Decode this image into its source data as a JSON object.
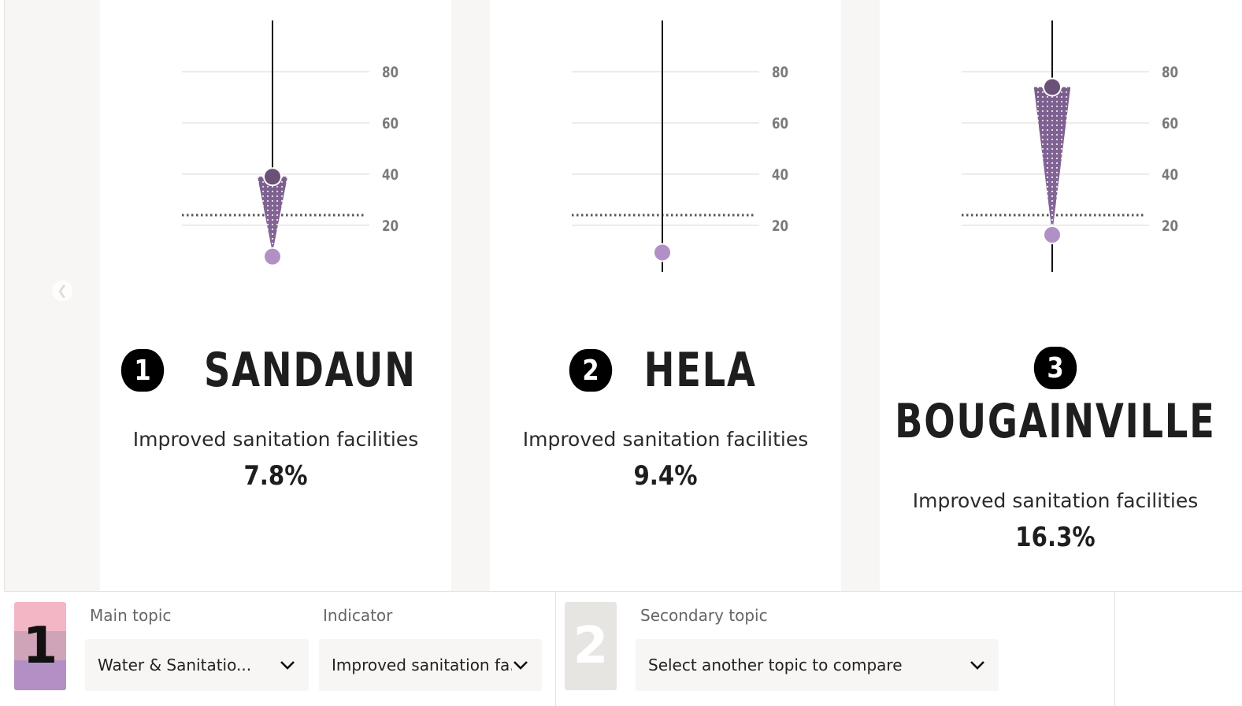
{
  "colors": {
    "accent_dark": "#6b5078",
    "accent_light": "#b190c6",
    "background": "#f8f6f4"
  },
  "chart_data": [
    {
      "type": "dot-range",
      "region": "SANDAUN",
      "rank": "1",
      "yticks": [
        "20",
        "40",
        "60",
        "80"
      ],
      "ylim": [
        0,
        100
      ],
      "low_value": 7.8,
      "high_value": 39,
      "reference_line": 24,
      "stem_top": 100,
      "stem_bottom": 39
    },
    {
      "type": "dot-range",
      "region": "HELA",
      "rank": "2",
      "yticks": [
        "20",
        "40",
        "60",
        "80"
      ],
      "ylim": [
        0,
        100
      ],
      "low_value": 9.4,
      "high_value": 9.4,
      "reference_line": 24,
      "stem_top": 100,
      "stem_bottom": 0
    },
    {
      "type": "dot-range",
      "region": "BOUGAINVILLE",
      "rank": "3",
      "yticks": [
        "20",
        "40",
        "60",
        "80"
      ],
      "ylim": [
        0,
        100
      ],
      "low_value": 16.3,
      "high_value": 74,
      "reference_line": 24,
      "stem_top": 100,
      "stem_bottom": 0
    }
  ],
  "panels": [
    {
      "rank": "1",
      "name": "SANDAUN",
      "indicator": "Improved sanitation facilities",
      "value": "7.8%"
    },
    {
      "rank": "2",
      "name": "HELA",
      "indicator": "Improved sanitation facilities",
      "value": "9.4%"
    },
    {
      "rank": "3",
      "name": "BOUGAINVILLE",
      "indicator": "Improved sanitation facilities",
      "value": "16.3%"
    }
  ],
  "controls": {
    "primary": {
      "number": "1",
      "main_topic_label": "Main topic",
      "main_topic_value": "Water & Sanitatio...",
      "indicator_label": "Indicator",
      "indicator_value": "Improved sanitation fa..."
    },
    "secondary": {
      "number": "2",
      "topic_label": "Secondary topic",
      "topic_value": "Select another topic to compare"
    }
  },
  "icons": {
    "prev": "chevron-left-icon",
    "dropdown": "chevron-down-icon"
  }
}
